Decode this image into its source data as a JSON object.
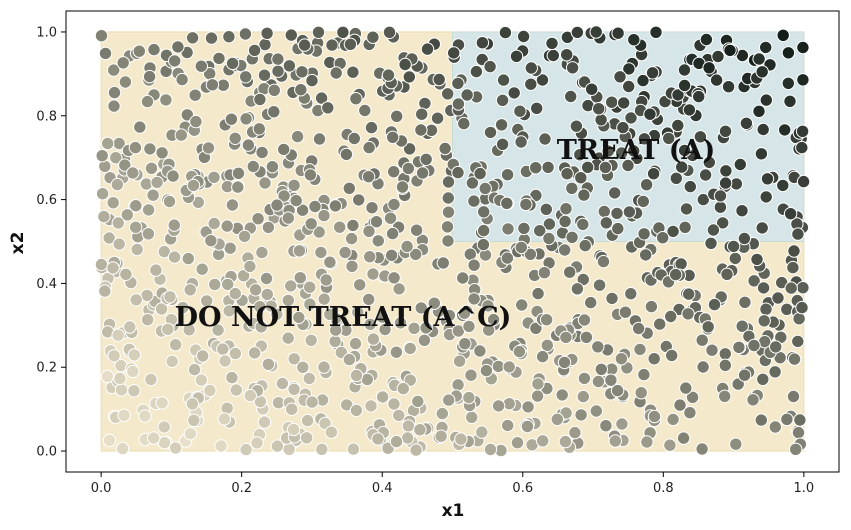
{
  "chart_data": {
    "type": "scatter",
    "title": "",
    "xlabel": "x1",
    "ylabel": "x2",
    "xlim": [
      -0.05,
      1.05
    ],
    "ylim": [
      -0.05,
      1.05
    ],
    "x_ticks": [
      "0.0",
      "0.2",
      "0.4",
      "0.6",
      "0.8",
      "1.0"
    ],
    "y_ticks": [
      "0.0",
      "0.2",
      "0.4",
      "0.6",
      "0.8",
      "1.0"
    ],
    "grid": false,
    "n_points": 1200,
    "point_distribution": "uniform on [0,1] x [0,1]",
    "point_color": "color gradient by (x1 + x2): light beige at low values to near-black at high values",
    "regions": [
      {
        "name": "treat",
        "label": "TREAT (A)",
        "x_range": [
          0.5,
          1.0
        ],
        "y_range": [
          0.5,
          1.0
        ],
        "fill_color": "#d6e6e8"
      },
      {
        "name": "do-not-treat",
        "label": "DO NOT TREAT (A^C)",
        "complement_of": "treat",
        "x_range": [
          0.0,
          1.0
        ],
        "y_range": [
          0.0,
          1.0
        ],
        "fill_color": "#f5e9cc"
      }
    ]
  }
}
